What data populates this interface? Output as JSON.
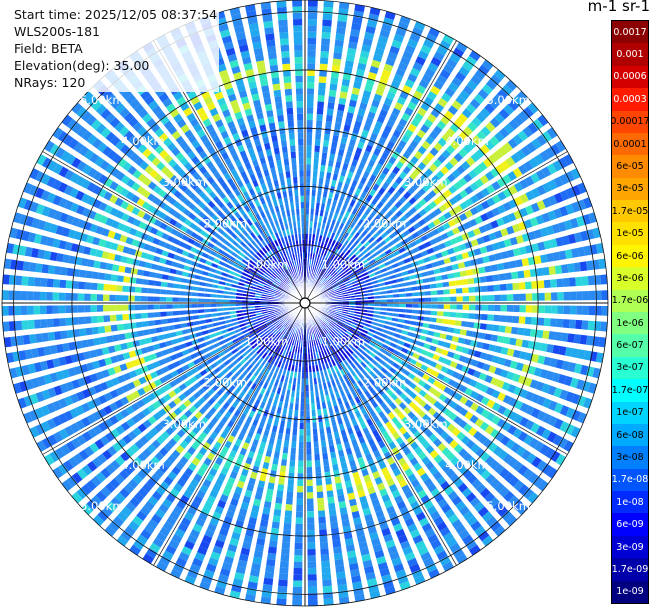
{
  "info": {
    "start_time": "Start time: 2025/12/05 08:37:54",
    "instrument": "WLS200s-181",
    "field": "Field: BETA",
    "elevation": "Elevation(deg): 35.00",
    "nrays": "NRays: 120"
  },
  "colorbar": {
    "title": "m-1 sr-1",
    "labels": [
      "0.0017",
      "0.001",
      "0.0006",
      "0.0003",
      "0.00017",
      "0.0001",
      "6e-05",
      "3e-05",
      "1.7e-05",
      "1e-05",
      "6e-06",
      "3e-06",
      "1.7e-06",
      "1e-06",
      "6e-07",
      "3e-07",
      "1.7e-07",
      "1e-07",
      "6e-08",
      "3e-08",
      "1.7e-08",
      "1e-08",
      "6e-09",
      "3e-09",
      "1.7e-09",
      "1e-09"
    ],
    "colors": [
      "#8b0000",
      "#b00000",
      "#d40000",
      "#ff1a00",
      "#ff4500",
      "#ff6a00",
      "#ff8c00",
      "#ffa500",
      "#ffc800",
      "#ffe100",
      "#fff500",
      "#d8ff2a",
      "#b0ff55",
      "#80ff80",
      "#55ffaa",
      "#2affd4",
      "#00ffff",
      "#00d4ff",
      "#00aaff",
      "#0080ff",
      "#0055ff",
      "#002aff",
      "#0000ff",
      "#0000d4",
      "#0000aa",
      "#000080"
    ]
  },
  "chart_data": {
    "type": "heatmap",
    "projection": "polar (PPI scan)",
    "rays": 120,
    "elevation_deg": 35.0,
    "field": "BETA",
    "units": "m-1 sr-1",
    "range_rings_km": [
      1.0,
      2.0,
      3.0,
      4.0,
      5.0
    ],
    "range_labels": [
      "1.00km",
      "2.00km",
      "3.00km",
      "4.00km",
      "5.00km"
    ],
    "max_range_km": 5.2,
    "colorscale": "log10, 1e-09 to 0.0017 (jet)",
    "enhanced_band": {
      "inner_km": 3.1,
      "outer_km": 4.2,
      "value": "1.7e-07"
    },
    "background_value": "3e-08",
    "near_range_value": "1e-08"
  }
}
